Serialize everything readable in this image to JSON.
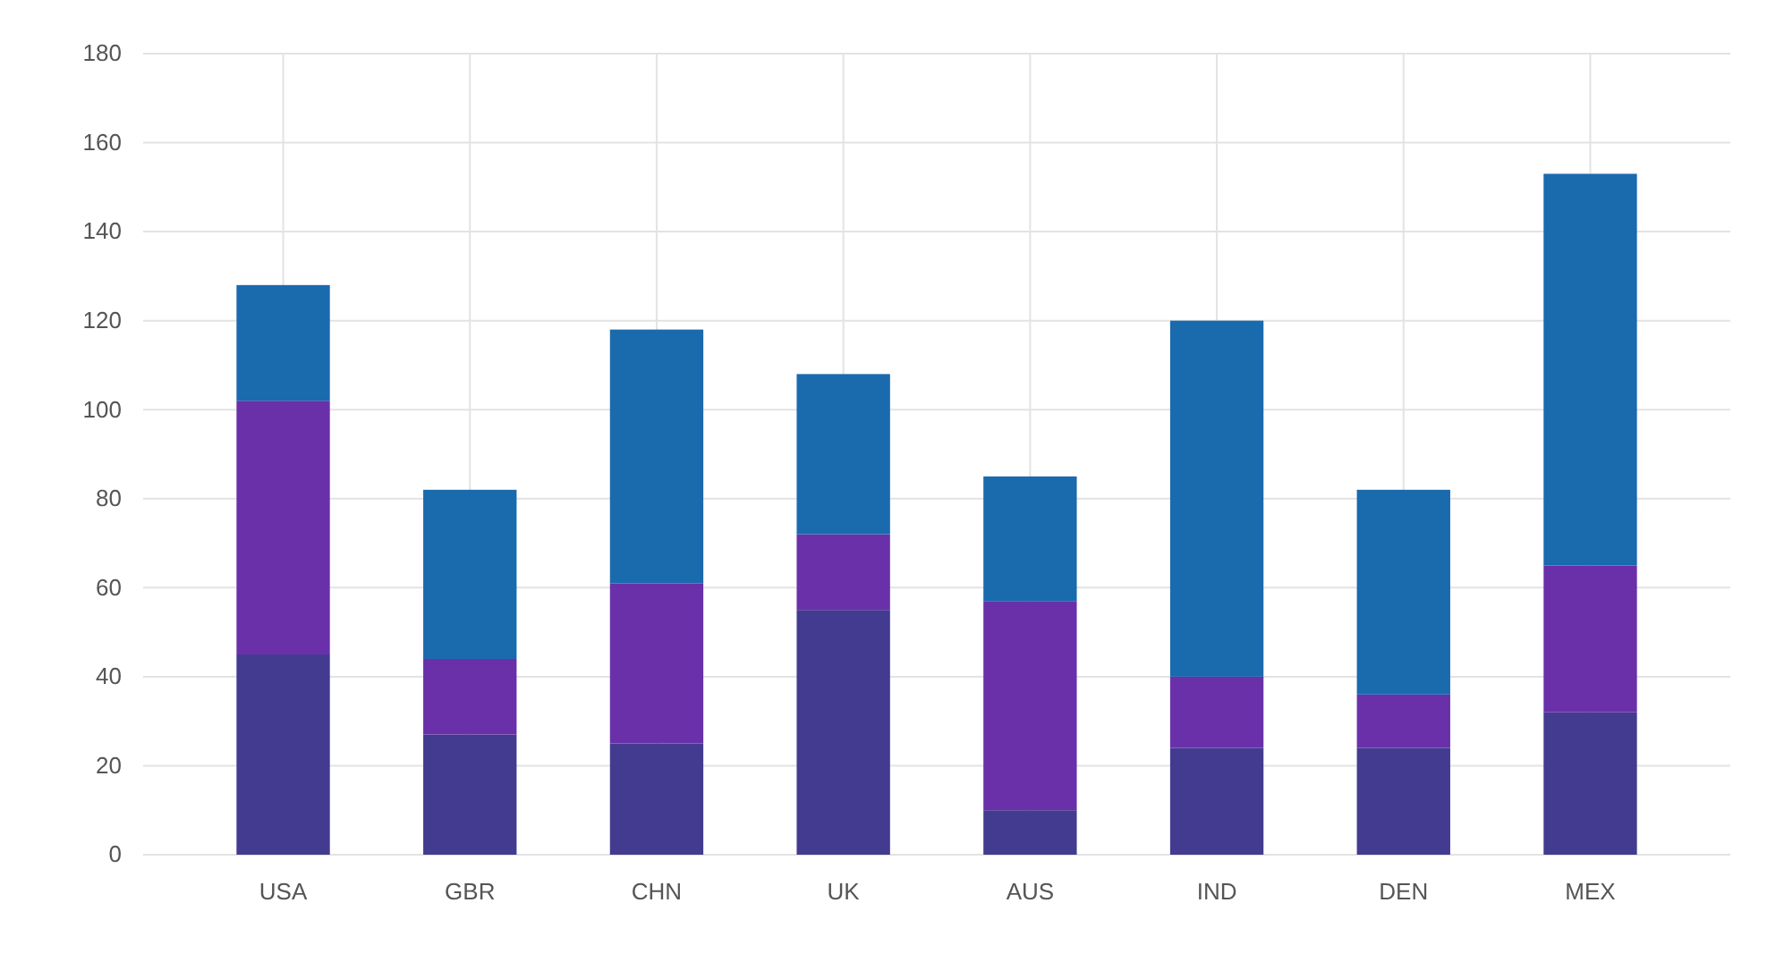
{
  "chart_data": {
    "type": "bar",
    "stacked": true,
    "categories": [
      "USA",
      "GBR",
      "CHN",
      "UK",
      "AUS",
      "IND",
      "DEN",
      "MEX"
    ],
    "series": [
      {
        "color": "#433b8f",
        "values": [
          45,
          27,
          25,
          55,
          10,
          24,
          24,
          32
        ]
      },
      {
        "color": "#6a30a9",
        "values": [
          57,
          17,
          36,
          17,
          47,
          16,
          12,
          33
        ]
      },
      {
        "color": "#1a6aae",
        "values": [
          26,
          38,
          57,
          36,
          28,
          80,
          46,
          88
        ]
      }
    ],
    "ylim": [
      0,
      180
    ],
    "yticks": [
      0,
      20,
      40,
      60,
      80,
      100,
      120,
      140,
      160,
      180
    ],
    "grid": true
  }
}
